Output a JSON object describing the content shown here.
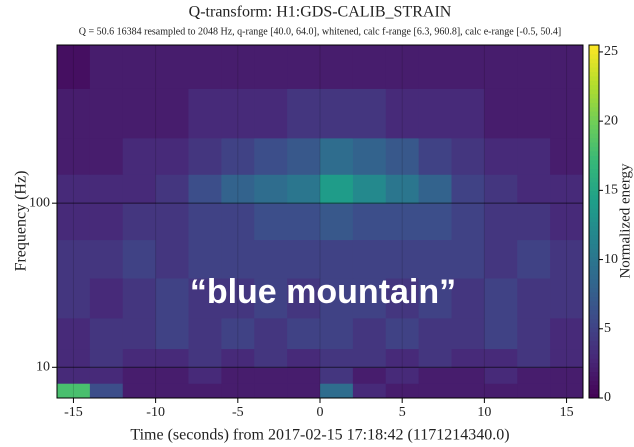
{
  "chart_data": {
    "type": "heatmap",
    "title": "Q-transform: H1:GDS-CALIB_STRAIN",
    "subtitle": "Q = 50.6 16384 resampled to 2048 Hz, q-range [40.0, 64.0], whitened, calc f-range [6.3, 960.8], calc e-range [-0.5, 50.4]",
    "x_label": "Time (seconds) from 2017-02-15 17:18:42 (1171214340.0)",
    "y_label": "Frequency (Hz)",
    "colorbar_label": "Normalized energy",
    "annotation": "“blue mountain”",
    "colormap": "viridis",
    "y_log": true,
    "grid": true,
    "xlim": [
      -16,
      16
    ],
    "xticks": [
      -15,
      -10,
      -5,
      0,
      5,
      10,
      15
    ],
    "ylim": [
      6.5,
      920
    ],
    "yticks": [
      10,
      100
    ],
    "clim": [
      0,
      25.5
    ],
    "cticks": [
      0,
      5,
      10,
      15,
      20,
      25
    ],
    "x_bins": [
      -16,
      -14,
      -12,
      -10,
      -8,
      -6,
      -4,
      -2,
      0,
      2,
      4,
      6,
      8,
      10,
      12,
      14,
      16
    ],
    "y_bins": [
      6.5,
      8,
      10,
      13,
      20,
      35,
      60,
      100,
      150,
      250,
      500,
      920
    ],
    "values": [
      [
        18,
        6,
        2,
        2,
        2,
        2,
        2,
        2,
        9,
        3,
        2,
        2,
        2,
        2,
        2,
        2
      ],
      [
        3,
        3,
        2,
        2,
        3,
        2,
        2,
        2,
        4,
        2,
        3,
        2,
        2,
        3,
        2,
        2
      ],
      [
        3,
        4,
        3,
        3,
        4,
        3,
        4,
        3,
        4,
        4,
        3,
        4,
        3,
        3,
        4,
        3
      ],
      [
        3,
        4,
        4,
        5,
        4,
        5,
        4,
        5,
        5,
        4,
        5,
        4,
        4,
        5,
        4,
        3
      ],
      [
        4,
        3,
        4,
        5,
        4,
        4,
        5,
        4,
        5,
        5,
        4,
        5,
        4,
        5,
        4,
        4
      ],
      [
        4,
        4,
        5,
        4,
        5,
        5,
        5,
        5,
        5,
        5,
        5,
        5,
        5,
        4,
        5,
        4
      ],
      [
        3,
        3,
        4,
        4,
        5,
        5,
        6,
        6,
        7,
        6,
        6,
        6,
        5,
        4,
        4,
        3
      ],
      [
        3,
        3,
        3,
        4,
        6,
        8,
        9,
        10,
        14,
        12,
        10,
        8,
        5,
        4,
        3,
        3
      ],
      [
        2,
        2,
        3,
        3,
        4,
        5,
        6,
        7,
        9,
        8,
        7,
        5,
        4,
        3,
        3,
        2
      ],
      [
        2,
        2,
        2,
        2,
        3,
        3,
        3,
        4,
        4,
        4,
        3,
        3,
        3,
        2,
        2,
        2
      ],
      [
        1,
        2,
        2,
        2,
        2,
        2,
        2,
        2,
        2,
        2,
        2,
        2,
        2,
        2,
        2,
        2
      ]
    ]
  }
}
